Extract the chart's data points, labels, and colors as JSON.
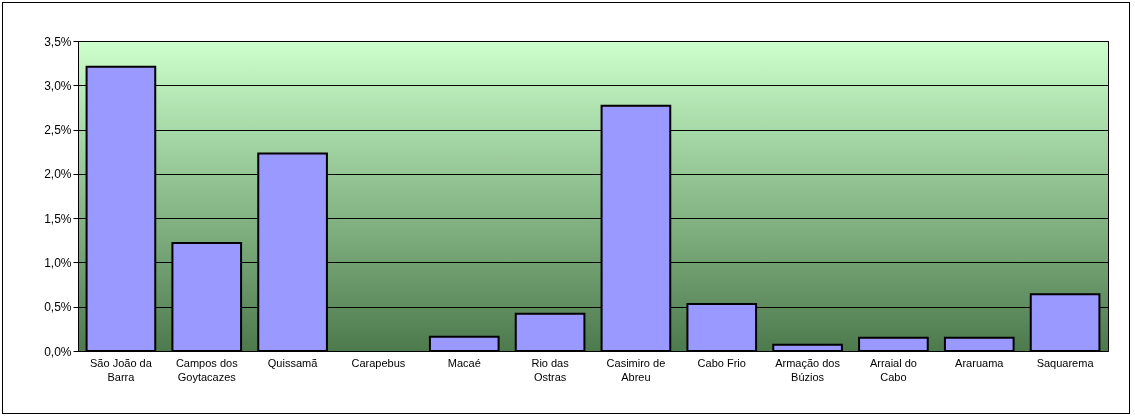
{
  "chart_data": {
    "type": "bar",
    "categories": [
      "São João da Barra",
      "Campos dos Goytacazes",
      "Quissamã",
      "Carapebus",
      "Macaé",
      "Rio das Ostras",
      "Casimiro de Abreu",
      "Cabo Frio",
      "Armação dos Búzios",
      "Arraial do Cabo",
      "Araruama",
      "Saquarema"
    ],
    "values": [
      3.21,
      1.22,
      2.23,
      0,
      0.16,
      0.42,
      2.77,
      0.53,
      0.07,
      0.15,
      0.15,
      0.64
    ],
    "color": "#9999ff",
    "ylim": [
      0,
      3.5
    ],
    "yticks": [
      {
        "value": 0,
        "label": "0,0%"
      },
      {
        "value": 0.5,
        "label": "0,5%"
      },
      {
        "value": 1,
        "label": "1,0%"
      },
      {
        "value": 1.5,
        "label": "1,5%"
      },
      {
        "value": 2,
        "label": "2,0%"
      },
      {
        "value": 2.5,
        "label": "2,5%"
      },
      {
        "value": 3,
        "label": "3,0%"
      },
      {
        "value": 3.5,
        "label": "3,5%"
      }
    ],
    "grid": "y"
  }
}
